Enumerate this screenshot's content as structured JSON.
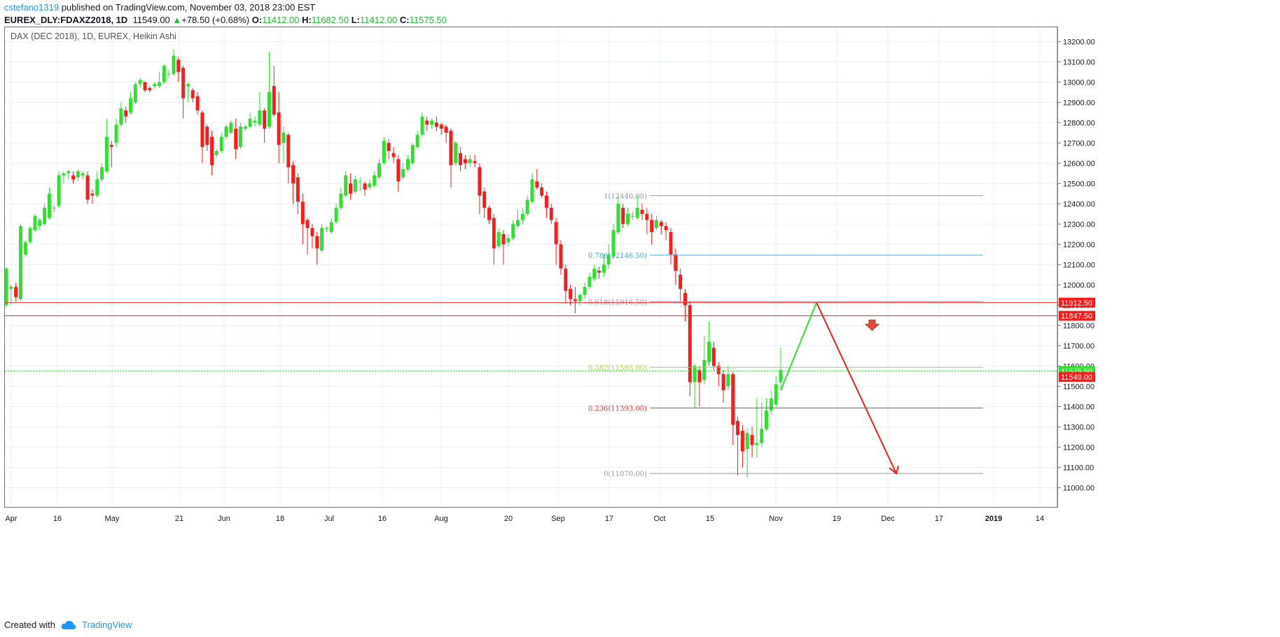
{
  "header": {
    "user": "cstefano1319",
    "published_text": " published on TradingView.com, November 03, 2018 23:00 EST",
    "symbol": "EUREX_DLY:FDAXZ2018, 1D",
    "last": "11549.00",
    "change": "+78.50 (+0.68%)",
    "o_label": "O:",
    "o_value": "11412.00",
    "h_label": "H:",
    "h_value": "11682.50",
    "l_label": "L:",
    "l_value": "11412.00",
    "c_label": "C:",
    "c_value": "11575.50"
  },
  "footer": {
    "created_with": "Created with",
    "brand": "TradingView"
  },
  "chart_data": {
    "type": "candlestick",
    "title": "DAX (DEC 2018), 1D, EUREX, Heikin Ashi",
    "ylim": [
      10905,
      13270
    ],
    "y_ticks": [
      11000,
      11100,
      11200,
      11300,
      11400,
      11500,
      11600,
      11700,
      11800,
      11900,
      12000,
      12100,
      12200,
      12300,
      12400,
      12500,
      12600,
      12700,
      12800,
      12900,
      13000,
      13100,
      13200
    ],
    "x_labels": [
      "Apr",
      "16",
      "May",
      "21",
      "Jun",
      "18",
      "Jul",
      "16",
      "Aug",
      "20",
      "Sep",
      "17",
      "Oct",
      "15",
      "Nov",
      "19",
      "Dec",
      "17",
      "2019",
      "14"
    ],
    "colors": {
      "up": "#2fe02f",
      "down": "#ff1a1a",
      "grid": "#e9f0f4",
      "fib_line": "#9598a1"
    },
    "fib_levels": [
      {
        "label": "1(12440.00)",
        "value": 12440,
        "color": "#9598a1"
      },
      {
        "label": "0.786(12146.50)",
        "value": 12146.5,
        "color": "#4aa3d9"
      },
      {
        "label": "0.618(11916.50)",
        "value": 11916.5,
        "color": "#9598a1"
      },
      {
        "label": "0.382(11593.00)",
        "value": 11593,
        "color": "#a6d44a"
      },
      {
        "label": "0.236(11393.00)",
        "value": 11393,
        "color": "#e53935"
      },
      {
        "label": "0(11070.00)",
        "value": 11070,
        "color": "#9598a1"
      }
    ],
    "horizontal_lines": [
      {
        "value": 11912.5,
        "label": "11912.50",
        "color": "#ff1a1a"
      },
      {
        "value": 11847.5,
        "label": "11847.50",
        "color": "#ff1a1a"
      }
    ],
    "price_marker_close": {
      "value": 11575.5,
      "label": "11575.50",
      "color": "#2fe02f"
    },
    "price_marker_last": {
      "value": 11549.0,
      "label": "11549.00",
      "color": "#ff1a1a"
    },
    "projection": {
      "up_leg": {
        "from": 11480,
        "to": 11912.5,
        "color": "#2fe02f"
      },
      "down_leg": {
        "from": 11912.5,
        "to": 11070,
        "color": "#ff1a1a"
      }
    },
    "candles": [
      [
        11900,
        12080,
        11890,
        12090
      ],
      [
        11980,
        11990,
        11900,
        12000
      ],
      [
        11990,
        11940,
        11920,
        12010
      ],
      [
        11930,
        12290,
        11920,
        12300
      ],
      [
        12150,
        12210,
        12140,
        12220
      ],
      [
        12210,
        12280,
        12200,
        12290
      ],
      [
        12270,
        12340,
        12260,
        12350
      ],
      [
        12290,
        12320,
        12270,
        12330
      ],
      [
        12300,
        12380,
        12290,
        12400
      ],
      [
        12330,
        12450,
        12320,
        12480
      ],
      [
        12380,
        12380,
        12360,
        12390
      ],
      [
        12390,
        12540,
        12380,
        12560
      ],
      [
        12540,
        12550,
        12500,
        12560
      ],
      [
        12550,
        12560,
        12520,
        12570
      ],
      [
        12540,
        12520,
        12500,
        12560
      ],
      [
        12530,
        12560,
        12510,
        12570
      ],
      [
        12540,
        12550,
        12520,
        12560
      ],
      [
        12540,
        12420,
        12400,
        12560
      ],
      [
        12450,
        12440,
        12400,
        12470
      ],
      [
        12440,
        12520,
        12430,
        12560
      ],
      [
        12520,
        12580,
        12510,
        12600
      ],
      [
        12560,
        12730,
        12550,
        12820
      ],
      [
        12690,
        12680,
        12580,
        12710
      ],
      [
        12700,
        12790,
        12680,
        12820
      ],
      [
        12790,
        12870,
        12780,
        12900
      ],
      [
        12860,
        12830,
        12800,
        12880
      ],
      [
        12850,
        12920,
        12840,
        12950
      ],
      [
        12900,
        12990,
        12890,
        13000
      ],
      [
        12990,
        13010,
        12970,
        13020
      ],
      [
        13000,
        12960,
        12950,
        13000
      ],
      [
        12970,
        12960,
        12950,
        12980
      ],
      [
        12980,
        12990,
        12970,
        13000
      ],
      [
        12980,
        13000,
        12970,
        13050
      ],
      [
        13000,
        13080,
        12990,
        13090
      ],
      [
        13040,
        13040,
        13020,
        13060
      ],
      [
        13040,
        13130,
        13030,
        13160
      ],
      [
        13110,
        13050,
        13000,
        13120
      ],
      [
        13070,
        12920,
        12820,
        13080
      ],
      [
        12980,
        12990,
        12900,
        13000
      ],
      [
        12960,
        12920,
        12900,
        12970
      ],
      [
        12930,
        12860,
        12840,
        12950
      ],
      [
        12850,
        12680,
        12600,
        12860
      ],
      [
        12780,
        12690,
        12660,
        12790
      ],
      [
        12730,
        12590,
        12540,
        12760
      ],
      [
        12640,
        12660,
        12630,
        12670
      ],
      [
        12660,
        12730,
        12650,
        12750
      ],
      [
        12730,
        12780,
        12720,
        12790
      ],
      [
        12750,
        12800,
        12740,
        12810
      ],
      [
        12770,
        12670,
        12620,
        12820
      ],
      [
        12680,
        12780,
        12670,
        12800
      ],
      [
        12770,
        12780,
        12760,
        12790
      ],
      [
        12780,
        12820,
        12770,
        12850
      ],
      [
        12800,
        12810,
        12780,
        12830
      ],
      [
        12790,
        12860,
        12780,
        12950
      ],
      [
        12860,
        12770,
        12700,
        12870
      ],
      [
        12780,
        12950,
        12770,
        13150
      ],
      [
        12980,
        12840,
        12830,
        13080
      ],
      [
        12850,
        12690,
        12600,
        12950
      ],
      [
        12700,
        12750,
        12600,
        12780
      ],
      [
        12740,
        12580,
        12500,
        12750
      ],
      [
        12590,
        12500,
        12400,
        12610
      ],
      [
        12530,
        12410,
        12350,
        12550
      ],
      [
        12410,
        12300,
        12200,
        12450
      ],
      [
        12320,
        12280,
        12150,
        12330
      ],
      [
        12280,
        12240,
        12180,
        12300
      ],
      [
        12240,
        12180,
        12100,
        12260
      ],
      [
        12170,
        12280,
        12160,
        12300
      ],
      [
        12280,
        12280,
        12260,
        12290
      ],
      [
        12260,
        12310,
        12250,
        12330
      ],
      [
        12310,
        12380,
        12300,
        12400
      ],
      [
        12380,
        12450,
        12370,
        12480
      ],
      [
        12440,
        12540,
        12430,
        12560
      ],
      [
        12500,
        12450,
        12420,
        12550
      ],
      [
        12460,
        12520,
        12450,
        12540
      ],
      [
        12510,
        12510,
        12460,
        12530
      ],
      [
        12500,
        12470,
        12440,
        12510
      ],
      [
        12480,
        12500,
        12470,
        12520
      ],
      [
        12490,
        12540,
        12480,
        12560
      ],
      [
        12530,
        12600,
        12520,
        12620
      ],
      [
        12600,
        12710,
        12590,
        12730
      ],
      [
        12700,
        12660,
        12620,
        12720
      ],
      [
        12650,
        12630,
        12600,
        12680
      ],
      [
        12620,
        12510,
        12460,
        12640
      ],
      [
        12530,
        12570,
        12520,
        12600
      ],
      [
        12570,
        12620,
        12560,
        12640
      ],
      [
        12600,
        12690,
        12590,
        12700
      ],
      [
        12680,
        12740,
        12670,
        12760
      ],
      [
        12740,
        12830,
        12730,
        12850
      ],
      [
        12810,
        12790,
        12760,
        12830
      ],
      [
        12790,
        12810,
        12770,
        12820
      ],
      [
        12800,
        12780,
        12760,
        12830
      ],
      [
        12790,
        12770,
        12740,
        12800
      ],
      [
        12780,
        12750,
        12700,
        12790
      ],
      [
        12760,
        12590,
        12480,
        12770
      ],
      [
        12600,
        12700,
        12590,
        12710
      ],
      [
        12650,
        12590,
        12560,
        12680
      ],
      [
        12620,
        12600,
        12570,
        12640
      ],
      [
        12600,
        12620,
        12580,
        12640
      ],
      [
        12610,
        12600,
        12580,
        12640
      ],
      [
        12580,
        12440,
        12350,
        12600
      ],
      [
        12460,
        12380,
        12330,
        12480
      ],
      [
        12380,
        12320,
        12300,
        12390
      ],
      [
        12330,
        12180,
        12100,
        12350
      ],
      [
        12190,
        12260,
        12180,
        12280
      ],
      [
        12250,
        12200,
        12100,
        12270
      ],
      [
        12210,
        12230,
        12190,
        12250
      ],
      [
        12230,
        12300,
        12220,
        12320
      ],
      [
        12290,
        12320,
        12280,
        12370
      ],
      [
        12320,
        12350,
        12300,
        12380
      ],
      [
        12350,
        12420,
        12340,
        12440
      ],
      [
        12410,
        12520,
        12400,
        12550
      ],
      [
        12510,
        12480,
        12470,
        12570
      ],
      [
        12480,
        12440,
        12430,
        12500
      ],
      [
        12440,
        12380,
        12330,
        12460
      ],
      [
        12380,
        12320,
        12300,
        12400
      ],
      [
        12310,
        12200,
        12100,
        12330
      ],
      [
        12200,
        12080,
        12050,
        12220
      ],
      [
        12080,
        11970,
        11910,
        12100
      ],
      [
        11980,
        11930,
        11900,
        12000
      ],
      [
        11930,
        11920,
        11860,
        11990
      ],
      [
        11920,
        11950,
        11900,
        11960
      ],
      [
        11950,
        11990,
        11930,
        12010
      ],
      [
        11990,
        12040,
        11980,
        12060
      ],
      [
        12030,
        12080,
        12020,
        12100
      ],
      [
        12070,
        12060,
        12030,
        12090
      ],
      [
        12060,
        12100,
        12040,
        12150
      ],
      [
        12100,
        12150,
        12080,
        12200
      ],
      [
        12140,
        12270,
        12130,
        12300
      ],
      [
        12260,
        12400,
        12250,
        12440
      ],
      [
        12380,
        12300,
        12280,
        12400
      ],
      [
        12300,
        12350,
        12290,
        12380
      ],
      [
        12340,
        12340,
        12320,
        12360
      ],
      [
        12330,
        12380,
        12320,
        12440
      ],
      [
        12370,
        12350,
        12320,
        12400
      ],
      [
        12350,
        12320,
        12250,
        12380
      ],
      [
        12320,
        12260,
        12200,
        12350
      ],
      [
        12280,
        12320,
        12270,
        12340
      ],
      [
        12310,
        12290,
        12250,
        12320
      ],
      [
        12290,
        12270,
        12220,
        12310
      ],
      [
        12260,
        12150,
        12100,
        12280
      ],
      [
        12150,
        12070,
        12000,
        12180
      ],
      [
        12050,
        11980,
        11920,
        12080
      ],
      [
        11960,
        11900,
        11820,
        11980
      ],
      [
        11900,
        11520,
        11450,
        11920
      ],
      [
        11520,
        11600,
        11390,
        11610
      ],
      [
        11580,
        11520,
        11400,
        11600
      ],
      [
        11530,
        11630,
        11510,
        11750
      ],
      [
        11620,
        11720,
        11600,
        11820
      ],
      [
        11690,
        11600,
        11580,
        11720
      ],
      [
        11600,
        11560,
        11500,
        11620
      ],
      [
        11560,
        11480,
        11420,
        11580
      ],
      [
        11500,
        11560,
        11480,
        11600
      ],
      [
        11560,
        11310,
        11210,
        11570
      ],
      [
        11330,
        11260,
        11060,
        11350
      ],
      [
        11280,
        11180,
        11100,
        11310
      ],
      [
        11190,
        11270,
        11050,
        11290
      ],
      [
        11260,
        11210,
        11150,
        11300
      ],
      [
        11210,
        11220,
        11150,
        11440
      ],
      [
        11220,
        11290,
        11200,
        11420
      ],
      [
        11290,
        11380,
        11280,
        11440
      ],
      [
        11380,
        11440,
        11360,
        11480
      ],
      [
        11410,
        11510,
        11400,
        11550
      ],
      [
        11520,
        11580,
        11480,
        11690
      ]
    ]
  }
}
